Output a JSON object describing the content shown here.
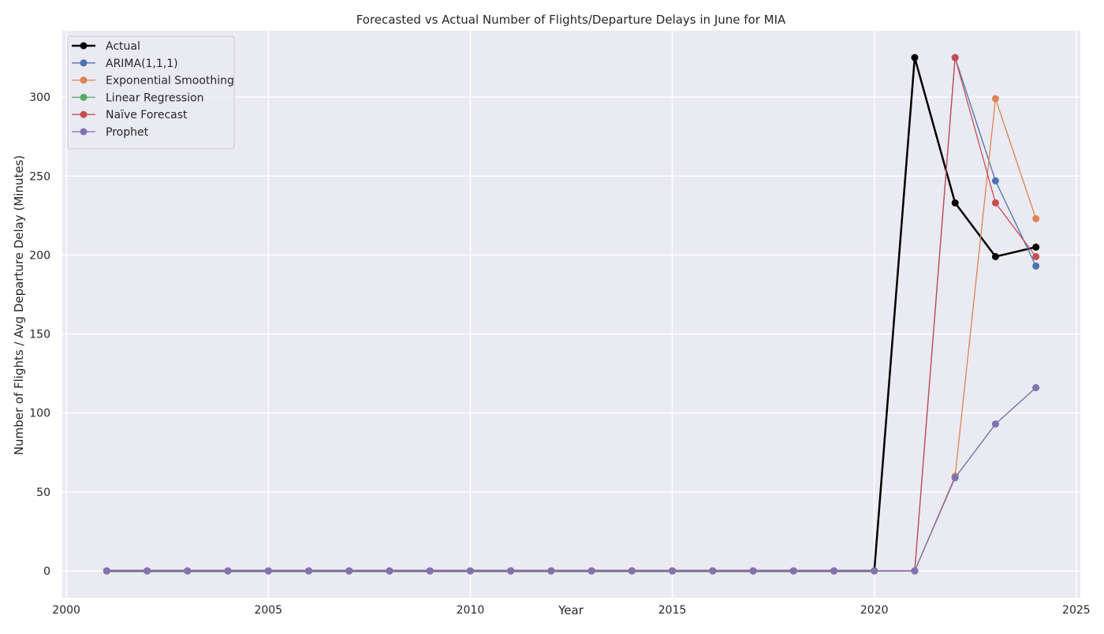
{
  "chart_data": {
    "type": "line",
    "title": "Forecasted vs Actual Number of Flights/Departure Delays in June for MIA",
    "xlabel": "Year",
    "ylabel": "Number of Flights / Avg Departure Delay (Minutes)",
    "xlim": [
      1999.9,
      2025.1
    ],
    "ylim": [
      -17,
      342
    ],
    "xticks": [
      2000,
      2005,
      2010,
      2015,
      2020,
      2025
    ],
    "yticks": [
      0,
      50,
      100,
      150,
      200,
      250,
      300
    ],
    "grid": true,
    "legend_position": "top-left",
    "x": [
      2001,
      2002,
      2003,
      2004,
      2005,
      2006,
      2007,
      2008,
      2009,
      2010,
      2011,
      2012,
      2013,
      2014,
      2015,
      2016,
      2017,
      2018,
      2019,
      2020,
      2021,
      2022,
      2023,
      2024
    ],
    "series": [
      {
        "name": "Actual",
        "color": "#000000",
        "values": [
          0,
          0,
          0,
          0,
          0,
          0,
          0,
          0,
          0,
          0,
          0,
          0,
          0,
          0,
          0,
          0,
          0,
          0,
          0,
          0,
          325,
          233,
          199,
          205
        ]
      },
      {
        "name": "ARIMA(1,1,1)",
        "color": "#4c72b0",
        "values": [
          0,
          0,
          0,
          0,
          0,
          0,
          0,
          0,
          0,
          0,
          0,
          0,
          0,
          0,
          0,
          0,
          0,
          0,
          0,
          0,
          0,
          325,
          247,
          193
        ]
      },
      {
        "name": "Exponential Smoothing",
        "color": "#dd8452",
        "values": [
          0,
          0,
          0,
          0,
          0,
          0,
          0,
          0,
          0,
          0,
          0,
          0,
          0,
          0,
          0,
          0,
          0,
          0,
          0,
          0,
          0,
          60,
          299,
          223
        ]
      },
      {
        "name": "Linear Regression",
        "color": "#55a868",
        "values": [
          0,
          0,
          0,
          0,
          0,
          0,
          0,
          0,
          0,
          0,
          0,
          0,
          0,
          0,
          0,
          0,
          0,
          0,
          0,
          0,
          0,
          59,
          93,
          116
        ]
      },
      {
        "name": "Naïve Forecast",
        "color": "#c44e52",
        "values": [
          0,
          0,
          0,
          0,
          0,
          0,
          0,
          0,
          0,
          0,
          0,
          0,
          0,
          0,
          0,
          0,
          0,
          0,
          0,
          0,
          0,
          325,
          233,
          199
        ]
      },
      {
        "name": "Prophet",
        "color": "#8172b3",
        "values": [
          0,
          0,
          0,
          0,
          0,
          0,
          0,
          0,
          0,
          0,
          0,
          0,
          0,
          0,
          0,
          0,
          0,
          0,
          0,
          0,
          0,
          59,
          93,
          116
        ]
      }
    ]
  }
}
